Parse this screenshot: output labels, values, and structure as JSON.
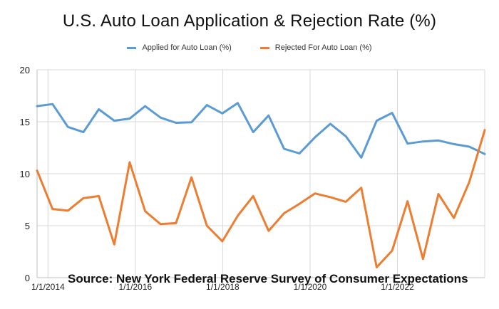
{
  "chart_data": {
    "type": "line",
    "title": "U.S. Auto Loan Application & Rejection Rate (%)",
    "xlabel": "",
    "ylabel": "",
    "ylim": [
      0,
      20
    ],
    "y_ticks": [
      0,
      5,
      10,
      15,
      20
    ],
    "x_tick_labels": [
      "1/1/2014",
      "1/1/2016",
      "1/1/2018",
      "1/1/2020",
      "1/1/2022"
    ],
    "grid": "on",
    "legend_position": "top-center",
    "series": [
      {
        "name": "Applied for Auto Loan (%)",
        "color": "#5b9bd5",
        "values": [
          16.5,
          16.7,
          14.5,
          14.0,
          16.2,
          15.1,
          15.3,
          16.5,
          15.4,
          14.9,
          14.95,
          16.6,
          15.8,
          16.8,
          14.0,
          15.6,
          12.4,
          11.95,
          13.5,
          14.8,
          13.6,
          11.55,
          15.1,
          15.85,
          12.9,
          13.1,
          13.2,
          12.85,
          12.6,
          11.9
        ]
      },
      {
        "name": "Rejected For Auto Loan (%)",
        "color": "#ed7d31",
        "values": [
          10.3,
          6.6,
          6.45,
          7.65,
          7.85,
          3.2,
          11.1,
          6.4,
          5.15,
          5.25,
          9.65,
          5.0,
          3.5,
          5.95,
          7.85,
          4.5,
          6.2,
          7.1,
          8.1,
          7.75,
          7.3,
          8.65,
          1.0,
          2.6,
          7.35,
          1.8,
          8.05,
          5.75,
          9.2,
          14.2
        ]
      }
    ]
  },
  "source_note": "Source: New York Federal Reserve Survey of Consumer Expectations"
}
